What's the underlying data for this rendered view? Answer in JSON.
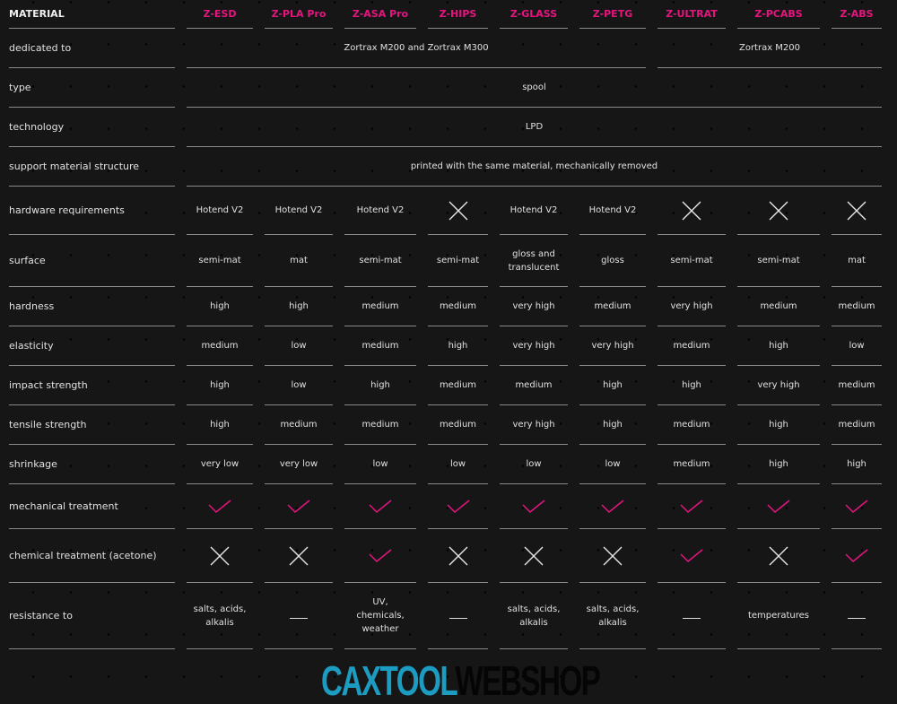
{
  "colors": {
    "accent": "#e5157f",
    "background": "#161616",
    "watermark_teal": "#1d9cc2"
  },
  "header": {
    "label": "MATERIAL",
    "materials": [
      "Z-ESD",
      "Z-PLA Pro",
      "Z-ASA Pro",
      "Z-HIPS",
      "Z-GLASS",
      "Z-PETG",
      "Z-ULTRAT",
      "Z-PCABS",
      "Z-ABS"
    ]
  },
  "rows": [
    {
      "label": "dedicated to",
      "spans": [
        {
          "text": "Zortrax M200 and Zortrax M300",
          "span": 6
        },
        {
          "text": "Zortrax M200",
          "span": 3
        }
      ]
    },
    {
      "label": "type",
      "spans": [
        {
          "text": "spool",
          "span": 9
        }
      ]
    },
    {
      "label": "technology",
      "spans": [
        {
          "text": "LPD",
          "span": 9
        }
      ]
    },
    {
      "label": "support material structure",
      "spans": [
        {
          "text": "printed with the same material, mechanically removed",
          "span": 9
        }
      ]
    },
    {
      "label": "hardware requirements",
      "cells": [
        "Hotend V2",
        "Hotend V2",
        "Hotend V2",
        "x-icon",
        "Hotend V2",
        "Hotend V2",
        "x-icon",
        "x-icon",
        "x-icon"
      ]
    },
    {
      "label": "surface",
      "cells": [
        "semi-mat",
        "mat",
        "semi-mat",
        "semi-mat",
        "gloss and translucent",
        "gloss",
        "semi-mat",
        "semi-mat",
        "mat"
      ]
    },
    {
      "label": "hardness",
      "cells": [
        "high",
        "high",
        "medium",
        "medium",
        "very high",
        "medium",
        "very high",
        "medium",
        "medium"
      ]
    },
    {
      "label": "elasticity",
      "cells": [
        "medium",
        "low",
        "medium",
        "high",
        "very high",
        "very high",
        "medium",
        "high",
        "low"
      ]
    },
    {
      "label": "impact strength",
      "cells": [
        "high",
        "low",
        "high",
        "medium",
        "medium",
        "high",
        "high",
        "very high",
        "medium"
      ]
    },
    {
      "label": "tensile strength",
      "cells": [
        "high",
        "medium",
        "medium",
        "medium",
        "very high",
        "high",
        "medium",
        "high",
        "medium"
      ]
    },
    {
      "label": "shrinkage",
      "cells": [
        "very low",
        "very low",
        "low",
        "low",
        "low",
        "low",
        "medium",
        "high",
        "high"
      ]
    },
    {
      "label": "mechanical treatment",
      "cells": [
        "check-icon",
        "check-icon",
        "check-icon",
        "check-icon",
        "check-icon",
        "check-icon",
        "check-icon",
        "check-icon",
        "check-icon"
      ]
    },
    {
      "label": "chemical treatment (acetone)",
      "cells": [
        "x-icon",
        "x-icon",
        "check-icon",
        "x-icon",
        "x-icon",
        "x-icon",
        "check-icon",
        "x-icon",
        "check-icon"
      ]
    },
    {
      "label": "resistance to",
      "cells": [
        "salts, acids, alkalis",
        "dash-icon",
        "UV, chemicals, weather",
        "dash-icon",
        "salts, acids, alkalis",
        "salts, acids, alkalis",
        "dash-icon",
        "temperatures",
        "dash-icon"
      ]
    }
  ],
  "watermark": {
    "part1": "CAXTOOL",
    "part2": "WEBSHOP"
  }
}
